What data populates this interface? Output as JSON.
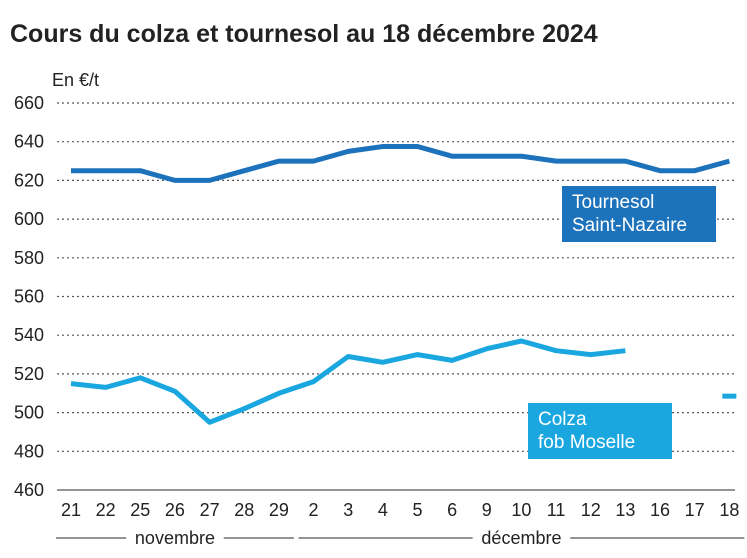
{
  "title": "Cours du colza et tournesol au 18 décembre 2024",
  "unit_label": "En €/t",
  "months": [
    {
      "label": "novembre",
      "from": 0,
      "to": 6
    },
    {
      "label": "décembre",
      "from": 7,
      "to": 19
    }
  ],
  "colors": {
    "tournesol": "#1c72bb",
    "colza": "#1aa7e0",
    "text": "#222222",
    "grid": "#555555"
  },
  "chart_data": {
    "type": "line",
    "title": "Cours du colza et tournesol au 18 décembre 2024",
    "ylabel": "En €/t",
    "xlabel": "",
    "ylim": [
      460,
      660
    ],
    "yticks": [
      460,
      480,
      500,
      520,
      540,
      560,
      580,
      600,
      620,
      640,
      660
    ],
    "categories": [
      "21",
      "22",
      "25",
      "26",
      "27",
      "28",
      "29",
      "2",
      "3",
      "4",
      "5",
      "6",
      "9",
      "10",
      "11",
      "12",
      "13",
      "16",
      "17",
      "18"
    ],
    "grid": true,
    "series": [
      {
        "name": "Tournesol Saint-Nazaire",
        "label_lines": [
          "Tournesol",
          "Saint-Nazaire"
        ],
        "color": "#1c72bb",
        "values": [
          625,
          625,
          625,
          620,
          620,
          625,
          630,
          630,
          635,
          637.5,
          637.5,
          632.5,
          632.5,
          632.5,
          630,
          630,
          630,
          625,
          625,
          630
        ]
      },
      {
        "name": "Colza fob Moselle",
        "label_lines": [
          "Colza",
          "fob Moselle"
        ],
        "color": "#1aa7e0",
        "values": [
          515,
          513,
          518,
          511,
          495,
          502,
          510,
          516,
          529,
          526,
          530,
          527,
          533,
          537,
          532,
          530,
          532,
          null,
          null,
          508.5
        ]
      }
    ]
  }
}
